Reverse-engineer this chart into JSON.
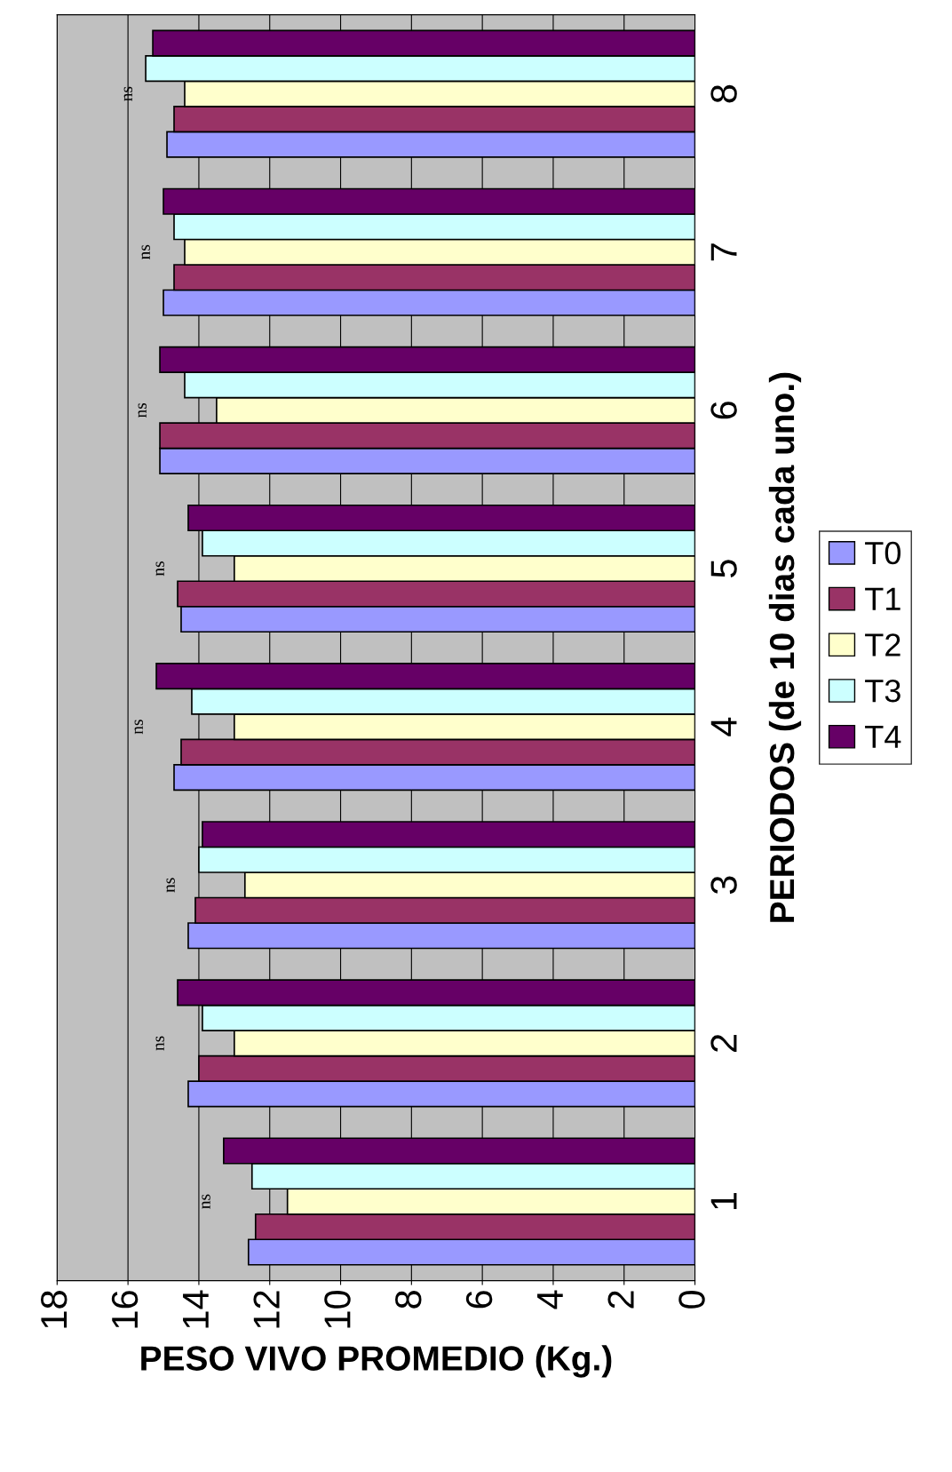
{
  "chart_data": {
    "type": "bar",
    "orientation": "horizontal",
    "categories": [
      "8",
      "7",
      "6",
      "5",
      "4",
      "3",
      "2",
      "1"
    ],
    "series": [
      {
        "name": "T0",
        "color": "#9999ff",
        "values": [
          14.9,
          15.0,
          15.1,
          14.5,
          14.7,
          14.3,
          14.3,
          12.6
        ]
      },
      {
        "name": "T1",
        "color": "#993366",
        "values": [
          14.7,
          14.7,
          15.1,
          14.6,
          14.5,
          14.1,
          14.0,
          12.4
        ]
      },
      {
        "name": "T2",
        "color": "#ffffcc",
        "values": [
          14.4,
          14.4,
          13.5,
          13.0,
          13.0,
          12.7,
          13.0,
          11.5
        ]
      },
      {
        "name": "T3",
        "color": "#ccffff",
        "values": [
          15.5,
          14.7,
          14.4,
          13.9,
          14.2,
          14.0,
          13.9,
          12.5
        ]
      },
      {
        "name": "T4",
        "color": "#660066",
        "values": [
          15.3,
          15.0,
          15.1,
          14.3,
          15.2,
          13.9,
          14.6,
          13.3
        ]
      }
    ],
    "xlim": [
      18,
      0
    ],
    "xticks": [
      0,
      2,
      4,
      6,
      8,
      10,
      12,
      14,
      16,
      18
    ],
    "xlabel": "PESO VIVO PROMEDIO (Kg.)",
    "ylabel": "PERIODOS (de 10 dias cada uno.)",
    "annotations": [
      "ns",
      "ns",
      "ns",
      "ns",
      "ns",
      "ns",
      "ns",
      "ns"
    ],
    "grid": "x",
    "legend": "right"
  }
}
